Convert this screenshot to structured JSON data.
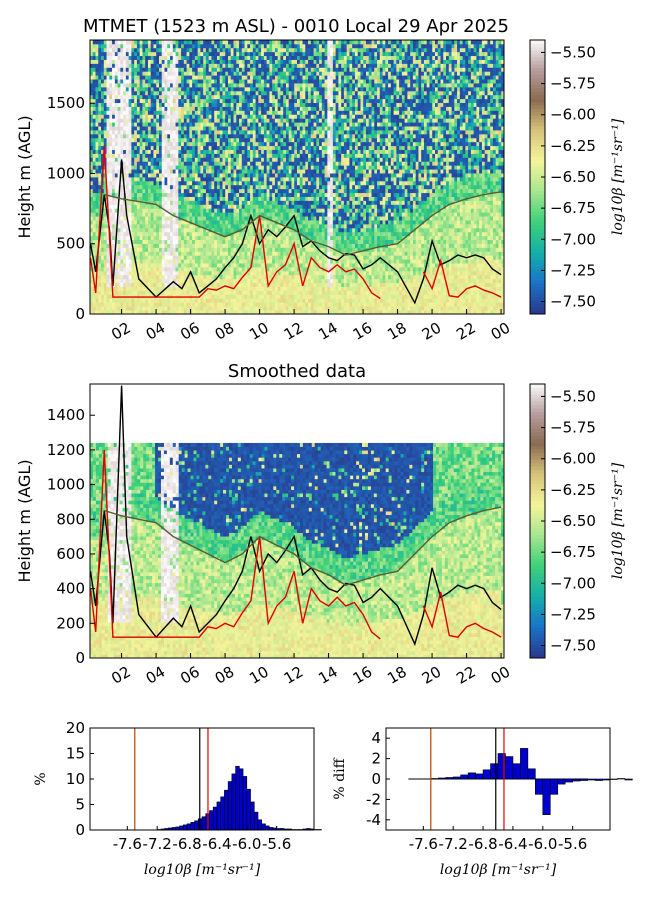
{
  "chart_data": [
    {
      "type": "heatmap",
      "title": "MTMET (1523 m ASL) - 0010 Local 29 Apr 2025",
      "ylabel": "Height m (AGL)",
      "xlabel": "",
      "x_tick_labels": [
        "02",
        "04",
        "06",
        "08",
        "10",
        "12",
        "14",
        "16",
        "18",
        "20",
        "22",
        "00"
      ],
      "x_range_hours": [
        0.17,
        24.17
      ],
      "y_ticks": [
        0,
        500,
        1000,
        1500
      ],
      "ylim": [
        0,
        1950
      ],
      "colorbar": {
        "label": "log10β [m⁻¹sr⁻¹]",
        "ticks": [
          -5.5,
          -5.75,
          -6.0,
          -6.25,
          -6.5,
          -6.75,
          -7.0,
          -7.25,
          -7.5
        ],
        "tick_labels": [
          "−5.50",
          "−5.75",
          "−6.00",
          "−6.25",
          "−6.50",
          "−6.75",
          "−7.00",
          "−7.25",
          "−7.50"
        ],
        "range": [
          -7.6,
          -5.4
        ],
        "colormap": [
          "#2b3a8e",
          "#1a74c8",
          "#15b0a8",
          "#3fd178",
          "#a8e690",
          "#f4f49a",
          "#d6c27a",
          "#8a6a50",
          "#b8a0a0",
          "#ffffff"
        ]
      },
      "lines": [
        {
          "color": "#000000",
          "x": [
            0.2,
            0.5,
            1,
            1.3,
            1.5,
            2,
            2.3,
            3,
            4,
            5,
            5.5,
            6,
            6.5,
            7,
            7.5,
            8,
            8.5,
            9,
            9.5,
            10,
            10.5,
            11,
            11.5,
            12,
            12.5,
            13,
            13.5,
            14,
            14.5,
            15,
            15.5,
            16,
            16.5,
            17,
            18,
            19,
            19.5,
            20,
            20.5,
            21,
            21.5,
            22,
            22.5,
            23,
            23.5,
            24
          ],
          "y": [
            500,
            300,
            850,
            600,
            200,
            1100,
            700,
            250,
            120,
            230,
            180,
            300,
            150,
            200,
            250,
            330,
            400,
            500,
            700,
            500,
            600,
            550,
            620,
            700,
            480,
            520,
            450,
            400,
            380,
            430,
            420,
            320,
            350,
            400,
            300,
            80,
            250,
            520,
            350,
            380,
            420,
            400,
            420,
            400,
            320,
            280
          ]
        },
        {
          "color": "#e00000",
          "x": [
            0.2,
            0.5,
            1,
            1.5,
            6.5,
            7,
            7.5,
            8,
            8.5,
            9,
            9.5,
            10,
            10.5,
            11,
            11.5,
            12,
            12.5,
            13,
            13.5,
            14,
            14.5,
            15,
            15.5,
            16,
            16.5,
            17,
            17.5,
            18,
            19.5,
            20,
            20.5,
            21,
            21.5,
            22,
            22.5,
            23,
            23.5,
            24
          ],
          "y": [
            400,
            150,
            1200,
            120,
            120,
            180,
            170,
            200,
            180,
            260,
            330,
            700,
            200,
            300,
            350,
            500,
            200,
            400,
            330,
            300,
            350,
            300,
            320,
            250,
            150,
            110,
            null,
            null,
            300,
            180,
            380,
            130,
            120,
            180,
            200,
            170,
            150,
            120
          ]
        },
        {
          "color": "#5c5c30",
          "x": [
            1,
            2,
            3,
            4,
            5,
            6,
            7,
            8,
            9,
            10,
            11,
            12,
            13,
            14,
            15,
            16,
            17,
            18,
            19,
            20,
            21,
            22,
            23,
            24
          ],
          "y": [
            850,
            820,
            800,
            780,
            700,
            650,
            600,
            550,
            600,
            700,
            650,
            600,
            520,
            480,
            420,
            450,
            480,
            500,
            600,
            700,
            780,
            820,
            850,
            870
          ]
        }
      ]
    },
    {
      "type": "heatmap",
      "title": "Smoothed data",
      "ylabel": "Height m (AGL)",
      "xlabel": "",
      "x_tick_labels": [
        "02",
        "04",
        "06",
        "08",
        "10",
        "12",
        "14",
        "16",
        "18",
        "20",
        "22",
        "00"
      ],
      "x_range_hours": [
        0.17,
        24.17
      ],
      "y_ticks": [
        0,
        200,
        400,
        600,
        800,
        1000,
        1200,
        1400
      ],
      "ylim": [
        0,
        1580
      ],
      "data_top": 1240,
      "colorbar": {
        "label": "log10β [m⁻¹sr⁻¹]",
        "ticks": [
          -5.5,
          -5.75,
          -6.0,
          -6.25,
          -6.5,
          -6.75,
          -7.0,
          -7.25,
          -7.5
        ],
        "tick_labels": [
          "−5.50",
          "−5.75",
          "−6.00",
          "−6.25",
          "−6.50",
          "−6.75",
          "−7.00",
          "−7.25",
          "−7.50"
        ],
        "range": [
          -7.6,
          -5.4
        ]
      },
      "lines": [
        {
          "color": "#000000",
          "x": [
            0.2,
            0.5,
            1,
            1.3,
            1.5,
            2,
            2.3,
            3,
            4,
            5,
            5.5,
            6,
            6.5,
            7,
            7.5,
            8,
            8.5,
            9,
            9.5,
            10,
            10.5,
            11,
            11.5,
            12,
            12.5,
            13,
            13.5,
            14,
            14.5,
            15,
            15.5,
            16,
            16.5,
            17,
            18,
            19,
            19.5,
            20,
            20.5,
            21,
            21.5,
            22,
            22.5,
            23,
            23.5,
            24
          ],
          "y": [
            500,
            300,
            850,
            600,
            200,
            1570,
            700,
            250,
            120,
            230,
            180,
            300,
            150,
            200,
            250,
            330,
            400,
            500,
            700,
            500,
            600,
            550,
            620,
            700,
            480,
            520,
            450,
            400,
            380,
            430,
            420,
            320,
            350,
            400,
            300,
            80,
            250,
            520,
            350,
            380,
            420,
            400,
            420,
            400,
            320,
            280
          ]
        },
        {
          "color": "#e00000",
          "x": [
            0.2,
            0.5,
            1,
            1.5,
            6.5,
            7,
            7.5,
            8,
            8.5,
            9,
            9.5,
            10,
            10.5,
            11,
            11.5,
            12,
            12.5,
            13,
            13.5,
            14,
            14.5,
            15,
            15.5,
            16,
            16.5,
            17,
            17.5,
            18,
            19.5,
            20,
            20.5,
            21,
            21.5,
            22,
            22.5,
            23,
            23.5,
            24
          ],
          "y": [
            400,
            150,
            1200,
            120,
            120,
            180,
            170,
            200,
            180,
            260,
            330,
            700,
            200,
            300,
            350,
            500,
            200,
            400,
            330,
            300,
            350,
            300,
            320,
            250,
            150,
            110,
            null,
            null,
            300,
            180,
            380,
            130,
            120,
            180,
            200,
            170,
            150,
            120
          ]
        },
        {
          "color": "#5c5c30",
          "x": [
            1,
            2,
            3,
            4,
            5,
            6,
            7,
            8,
            9,
            10,
            11,
            12,
            13,
            14,
            15,
            16,
            17,
            18,
            19,
            20,
            21,
            22,
            23,
            24
          ],
          "y": [
            850,
            820,
            800,
            780,
            700,
            650,
            600,
            550,
            600,
            700,
            650,
            600,
            520,
            480,
            420,
            450,
            480,
            500,
            600,
            700,
            780,
            820,
            850,
            870
          ]
        }
      ]
    },
    {
      "type": "bar",
      "title": "",
      "ylabel": "%",
      "xlabel": "log10β [m⁻¹sr⁻¹]",
      "x_tick_values": [
        -7.6,
        -7.2,
        -6.8,
        -6.4,
        -6.0,
        -5.6
      ],
      "x_tick_labels": [
        "-7.6",
        "-7.2",
        "-6.8",
        "-6.4",
        "-6.0",
        "-5.6"
      ],
      "xlim": [
        -8.1,
        -5.1
      ],
      "ylim": [
        0,
        20
      ],
      "y_ticks": [
        0,
        5,
        10,
        15,
        20
      ],
      "bin_width": 0.05,
      "bins_start": -7.2,
      "values": [
        0.1,
        0.2,
        0.3,
        0.4,
        0.5,
        0.6,
        0.8,
        1.0,
        1.2,
        1.5,
        1.8,
        2.2,
        2.6,
        3.2,
        3.8,
        4.5,
        5.5,
        6.5,
        7.8,
        9.5,
        11.0,
        12.5,
        12.0,
        10.5,
        8.0,
        5.5,
        3.5,
        2.0,
        1.2,
        0.8,
        0.5,
        0.4,
        0.3,
        0.3,
        0.2,
        0.2,
        0.1,
        0.1,
        0.1,
        0.2,
        0.3,
        0.2,
        0.1,
        0.1
      ],
      "vlines": [
        {
          "x": -7.5,
          "color": "#c04000"
        },
        {
          "x": -6.63,
          "color": "#000000"
        },
        {
          "x": -6.52,
          "color": "#e00000"
        }
      ]
    },
    {
      "type": "bar",
      "title": "",
      "ylabel": "% diff",
      "xlabel": "log10β [m⁻¹sr⁻¹]",
      "x_tick_values": [
        -7.6,
        -7.2,
        -6.8,
        -6.4,
        -6.0,
        -5.6
      ],
      "x_tick_labels": [
        "-7.6",
        "-7.2",
        "-6.8",
        "-6.4",
        "-6.0",
        "-5.6"
      ],
      "xlim": [
        -8.1,
        -5.1
      ],
      "ylim": [
        -5,
        5
      ],
      "y_ticks": [
        -4,
        -2,
        0,
        2,
        4
      ],
      "bin_width": 0.1,
      "bins_start": -7.5,
      "values": [
        0.05,
        0.1,
        0.15,
        0.2,
        0.4,
        0.6,
        0.5,
        0.9,
        1.5,
        2.5,
        2.2,
        1.5,
        3.0,
        1.0,
        -1.5,
        -3.5,
        -1.5,
        -0.5,
        -0.3,
        -0.2,
        -0.15,
        -0.1,
        -0.15,
        -0.1,
        -0.05,
        0.05,
        -0.1
      ],
      "zero_line_range": [
        -7.8,
        -5.4
      ],
      "vlines": [
        {
          "x": -7.5,
          "color": "#c04000"
        },
        {
          "x": -6.63,
          "color": "#000000"
        },
        {
          "x": -6.52,
          "color": "#e00000"
        }
      ]
    }
  ]
}
